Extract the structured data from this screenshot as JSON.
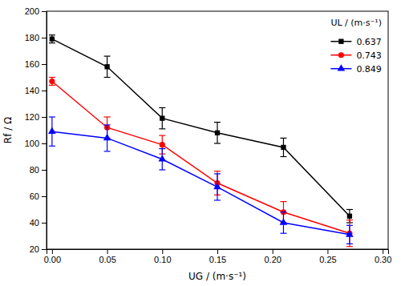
{
  "chart_data": {
    "type": "line",
    "x_label": "UG / (m·s⁻¹)",
    "y_label": "Rf / Ω",
    "legend_title": "UL / (m·s⁻¹)",
    "x": [
      0.0,
      0.05,
      0.1,
      0.15,
      0.21,
      0.27
    ],
    "series": [
      {
        "name": "0.637",
        "color": "#000000",
        "marker": "square",
        "values": [
          179,
          158,
          119,
          108,
          97,
          45
        ],
        "errors": [
          3,
          8,
          8,
          8,
          7,
          5
        ]
      },
      {
        "name": "0.743",
        "color": "#ff0000",
        "marker": "circle",
        "values": [
          147,
          112,
          99,
          70,
          48,
          32
        ],
        "errors": [
          3,
          8,
          7,
          9,
          8,
          10
        ]
      },
      {
        "name": "0.849",
        "color": "#0000ff",
        "marker": "triangle",
        "values": [
          109,
          104,
          88,
          67,
          40,
          31
        ],
        "errors": [
          11,
          10,
          8,
          10,
          8,
          7
        ]
      }
    ],
    "xlim": [
      -0.005,
      0.305
    ],
    "ylim": [
      20,
      200
    ],
    "xticks": [
      {
        "value": 0.0,
        "label": "0.00"
      },
      0.05,
      {
        "value": 0.1,
        "label": "0.10"
      },
      0.15,
      {
        "value": 0.2,
        "label": "0.20"
      },
      0.25,
      {
        "value": 0.3,
        "label": "0.30"
      }
    ],
    "yticks": [
      20,
      40,
      60,
      80,
      100,
      120,
      140,
      160,
      180,
      200
    ],
    "grid": false,
    "legend": "upper right"
  }
}
